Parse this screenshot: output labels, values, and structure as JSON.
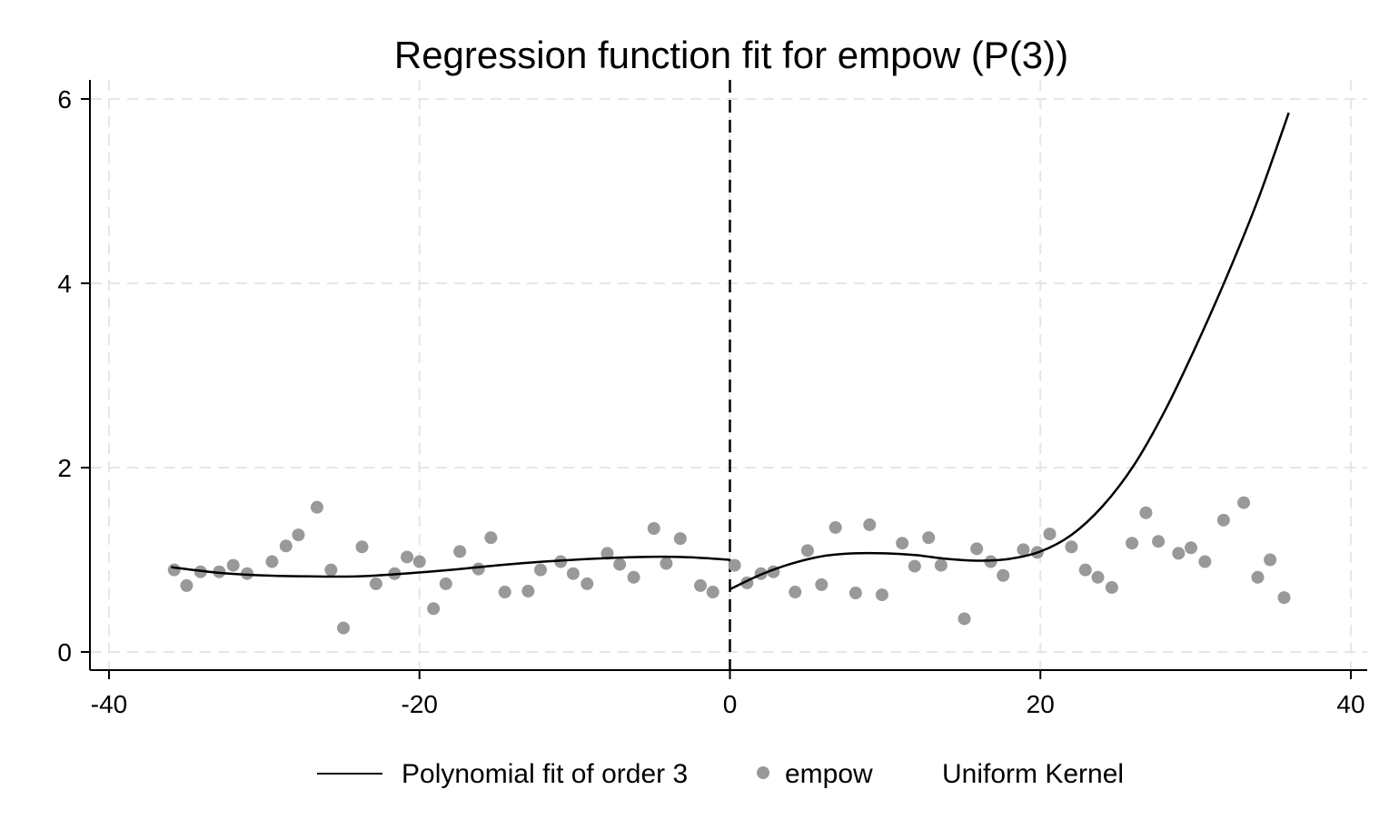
{
  "chart_data": {
    "type": "scatter",
    "title": "Regression function fit for empow (P(3))",
    "xlabel": "",
    "ylabel": "",
    "xlim": [
      -41,
      41
    ],
    "ylim": [
      -0.2,
      6.2
    ],
    "x_ticks": [
      -40,
      -20,
      0,
      20,
      40
    ],
    "y_ticks": [
      0,
      2,
      4,
      6
    ],
    "grid": true,
    "cutoff": 0,
    "legend_position": "bottom",
    "legend": [
      "Polynomial fit of order 3",
      "empow",
      "Uniform Kernel"
    ],
    "colors": {
      "line": "#000000",
      "points": "#999999",
      "grid": "#e6e6e6"
    },
    "series": [
      {
        "name": "empow",
        "kind": "scatter",
        "points": [
          [
            -35.8,
            0.89
          ],
          [
            -35.0,
            0.72
          ],
          [
            -34.1,
            0.87
          ],
          [
            -32.9,
            0.87
          ],
          [
            -32.0,
            0.94
          ],
          [
            -31.1,
            0.85
          ],
          [
            -29.5,
            0.98
          ],
          [
            -28.6,
            1.15
          ],
          [
            -27.8,
            1.27
          ],
          [
            -26.6,
            1.57
          ],
          [
            -25.7,
            0.89
          ],
          [
            -24.9,
            0.26
          ],
          [
            -23.7,
            1.14
          ],
          [
            -22.8,
            0.74
          ],
          [
            -21.6,
            0.85
          ],
          [
            -20.8,
            1.03
          ],
          [
            -20.0,
            0.98
          ],
          [
            -19.1,
            0.47
          ],
          [
            -18.3,
            0.74
          ],
          [
            -17.4,
            1.09
          ],
          [
            -16.2,
            0.9
          ],
          [
            -15.4,
            1.24
          ],
          [
            -14.5,
            0.65
          ],
          [
            -13.0,
            0.66
          ],
          [
            -12.2,
            0.89
          ],
          [
            -10.9,
            0.98
          ],
          [
            -10.1,
            0.85
          ],
          [
            -9.2,
            0.74
          ],
          [
            -7.9,
            1.07
          ],
          [
            -7.1,
            0.95
          ],
          [
            -6.2,
            0.81
          ],
          [
            -4.9,
            1.34
          ],
          [
            -4.1,
            0.96
          ],
          [
            -3.2,
            1.23
          ],
          [
            -1.9,
            0.72
          ],
          [
            -1.1,
            0.65
          ],
          [
            0.3,
            0.94
          ],
          [
            1.1,
            0.75
          ],
          [
            2.0,
            0.85
          ],
          [
            2.8,
            0.87
          ],
          [
            4.2,
            0.65
          ],
          [
            5.0,
            1.1
          ],
          [
            5.9,
            0.73
          ],
          [
            6.8,
            1.35
          ],
          [
            8.1,
            0.64
          ],
          [
            9.0,
            1.38
          ],
          [
            9.8,
            0.62
          ],
          [
            11.1,
            1.18
          ],
          [
            11.9,
            0.93
          ],
          [
            12.8,
            1.24
          ],
          [
            13.6,
            0.94
          ],
          [
            15.1,
            0.36
          ],
          [
            15.9,
            1.12
          ],
          [
            16.8,
            0.98
          ],
          [
            17.6,
            0.83
          ],
          [
            18.9,
            1.11
          ],
          [
            19.8,
            1.08
          ],
          [
            20.6,
            1.28
          ],
          [
            22.0,
            1.14
          ],
          [
            22.9,
            0.89
          ],
          [
            23.7,
            0.81
          ],
          [
            24.6,
            0.7
          ],
          [
            25.9,
            1.18
          ],
          [
            26.8,
            1.51
          ],
          [
            27.6,
            1.2
          ],
          [
            28.9,
            1.07
          ],
          [
            29.7,
            1.13
          ],
          [
            30.6,
            0.98
          ],
          [
            31.8,
            1.43
          ],
          [
            33.1,
            1.62
          ],
          [
            34.0,
            0.81
          ],
          [
            34.8,
            1.0
          ],
          [
            35.7,
            0.59
          ]
        ]
      },
      {
        "name": "Polynomial fit of order 3",
        "kind": "line",
        "segments": [
          [
            [
              -36.0,
              0.92
            ],
            [
              -33.0,
              0.86
            ],
            [
              -30.0,
              0.83
            ],
            [
              -27.0,
              0.82
            ],
            [
              -24.0,
              0.82
            ],
            [
              -21.0,
              0.85
            ],
            [
              -18.0,
              0.89
            ],
            [
              -15.0,
              0.94
            ],
            [
              -12.0,
              0.98
            ],
            [
              -9.0,
              1.01
            ],
            [
              -6.0,
              1.03
            ],
            [
              -3.0,
              1.03
            ],
            [
              0.0,
              1.0
            ]
          ],
          [
            [
              0.0,
              0.68
            ],
            [
              2.0,
              0.84
            ],
            [
              4.0,
              0.96
            ],
            [
              6.0,
              1.04
            ],
            [
              8.0,
              1.07
            ],
            [
              10.0,
              1.07
            ],
            [
              12.0,
              1.05
            ],
            [
              14.0,
              1.01
            ],
            [
              16.0,
              0.99
            ],
            [
              18.0,
              1.01
            ],
            [
              20.0,
              1.09
            ],
            [
              22.0,
              1.27
            ],
            [
              24.0,
              1.58
            ],
            [
              26.0,
              2.02
            ],
            [
              28.0,
              2.61
            ],
            [
              30.0,
              3.31
            ],
            [
              32.0,
              4.07
            ],
            [
              34.0,
              4.9
            ],
            [
              36.0,
              5.85
            ]
          ]
        ]
      }
    ]
  }
}
